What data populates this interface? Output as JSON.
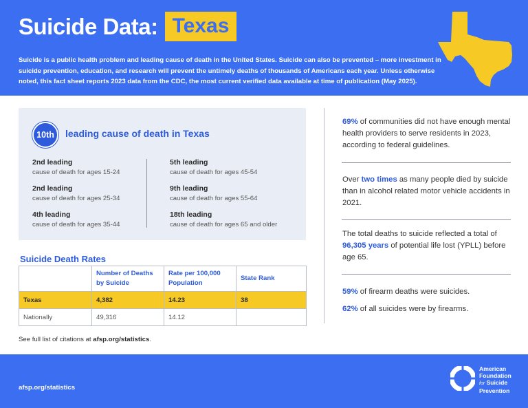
{
  "header": {
    "title": "Suicide Data:",
    "state": "Texas",
    "intro": "Suicide is a public health problem and leading cause of death in the United States. Suicide can also be prevented – more investment in suicide prevention, education, and research will prevent the untimely deaths of thousands of Americans each year. Unless otherwise noted, this fact sheet reports 2023 data from the CDC, the most current verified data available at time of publication (May 2025).",
    "map_icon": "texas-state-map",
    "colors": {
      "brand_blue": "#3b6ef0",
      "accent_yellow": "#f7c924",
      "text_blue": "#2d5bdb"
    }
  },
  "ranking": {
    "badge": "10th",
    "label": "leading cause of death in Texas",
    "left": [
      {
        "rank": "2nd leading",
        "desc": "cause of death for ages 15-24"
      },
      {
        "rank": "2nd leading",
        "desc": "cause of death for ages 25-34"
      },
      {
        "rank": "4th leading",
        "desc": "cause of death for ages 35-44"
      }
    ],
    "right": [
      {
        "rank": "5th leading",
        "desc": "cause of death for ages 45-54"
      },
      {
        "rank": "9th leading",
        "desc": "cause of death for ages 55-64"
      },
      {
        "rank": "18th leading",
        "desc": "cause of death for ages 65 and older"
      }
    ]
  },
  "rates": {
    "title": "Suicide Death Rates",
    "headers": [
      "",
      "Number of Deaths by Suicide",
      "Rate per 100,000 Population",
      "State Rank"
    ],
    "rows": [
      [
        "Texas",
        "4,382",
        "14.23",
        "38"
      ],
      [
        "Nationally",
        "49,316",
        "14.12",
        ""
      ]
    ]
  },
  "citation": {
    "prefix": "See full list of citations at ",
    "link": "afsp.org/statistics",
    "suffix": "."
  },
  "stats": [
    {
      "highlight": "69%",
      "text": " of communities did not have enough mental health providers to serve residents in 2023, according to federal guidelines."
    },
    {
      "before": "Over ",
      "highlight": "two times",
      "text": " as many people died by suicide than in alcohol related motor vehicle accidents in 2021."
    },
    {
      "before": "The total deaths to suicide reflected a total of ",
      "highlight": "96,305 years",
      "text": " of potential life lost (YPLL) before age 65."
    },
    {
      "highlight": "59%",
      "text": " of firearm deaths were suicides."
    },
    {
      "highlight": "62%",
      "text": " of all suicides were by firearms."
    }
  ],
  "footer": {
    "url": "afsp.org/statistics",
    "logo_icon": "lifesaver-ring-icon",
    "org_line1": "American",
    "org_line2": "Foundation",
    "org_for": "for",
    "org_line3": "Suicide",
    "org_line4": "Prevention"
  }
}
